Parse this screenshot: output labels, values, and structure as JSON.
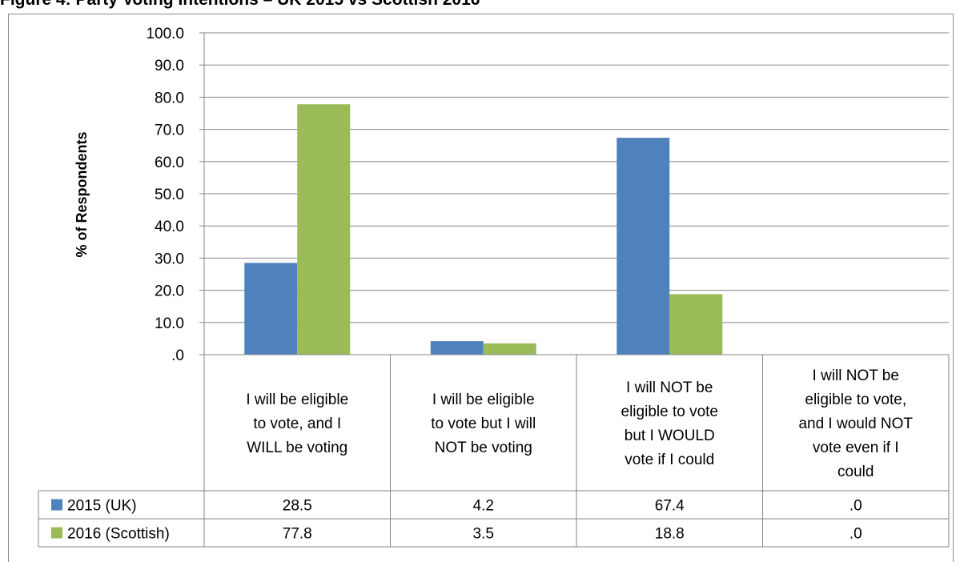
{
  "caption": "Figure 4: Party Voting Intentions – UK 2015 vs Scottish 2016",
  "chart_data": {
    "type": "bar",
    "title": "",
    "xlabel": "",
    "ylabel": "% of Respondents",
    "ylim": [
      0,
      100
    ],
    "yticks": [
      ".0",
      "10.0",
      "20.0",
      "30.0",
      "40.0",
      "50.0",
      "60.0",
      "70.0",
      "80.0",
      "90.0",
      "100.0"
    ],
    "grid": true,
    "legend": "data-table-left",
    "categories": [
      "I will be eligible to vote, and I WILL be voting",
      "I will be eligible to vote but I will NOT be voting",
      "I will NOT be eligible to vote but I WOULD vote if I could",
      "I will NOT be eligible to vote, and I would NOT vote even if I could"
    ],
    "category_lines": [
      [
        "I will be eligible",
        "to vote, and I",
        "WILL be voting"
      ],
      [
        "I will be eligible",
        "to vote but I will",
        "NOT be voting"
      ],
      [
        "I will NOT be",
        "eligible to vote",
        "but I WOULD",
        "vote if I could"
      ],
      [
        "I will NOT be",
        "eligible to vote,",
        "and I would NOT",
        "vote even if I",
        "could"
      ]
    ],
    "series": [
      {
        "name": "2015 (UK)",
        "values": [
          28.5,
          4.2,
          67.4,
          0.0
        ],
        "labels": [
          "28.5",
          "4.2",
          "67.4",
          ".0"
        ],
        "color": "#4F81BD"
      },
      {
        "name": "2016 (Scottish)",
        "values": [
          77.8,
          3.5,
          18.8,
          0.0
        ],
        "labels": [
          "77.8",
          "3.5",
          "18.8",
          ".0"
        ],
        "color": "#9BBB59"
      }
    ]
  }
}
